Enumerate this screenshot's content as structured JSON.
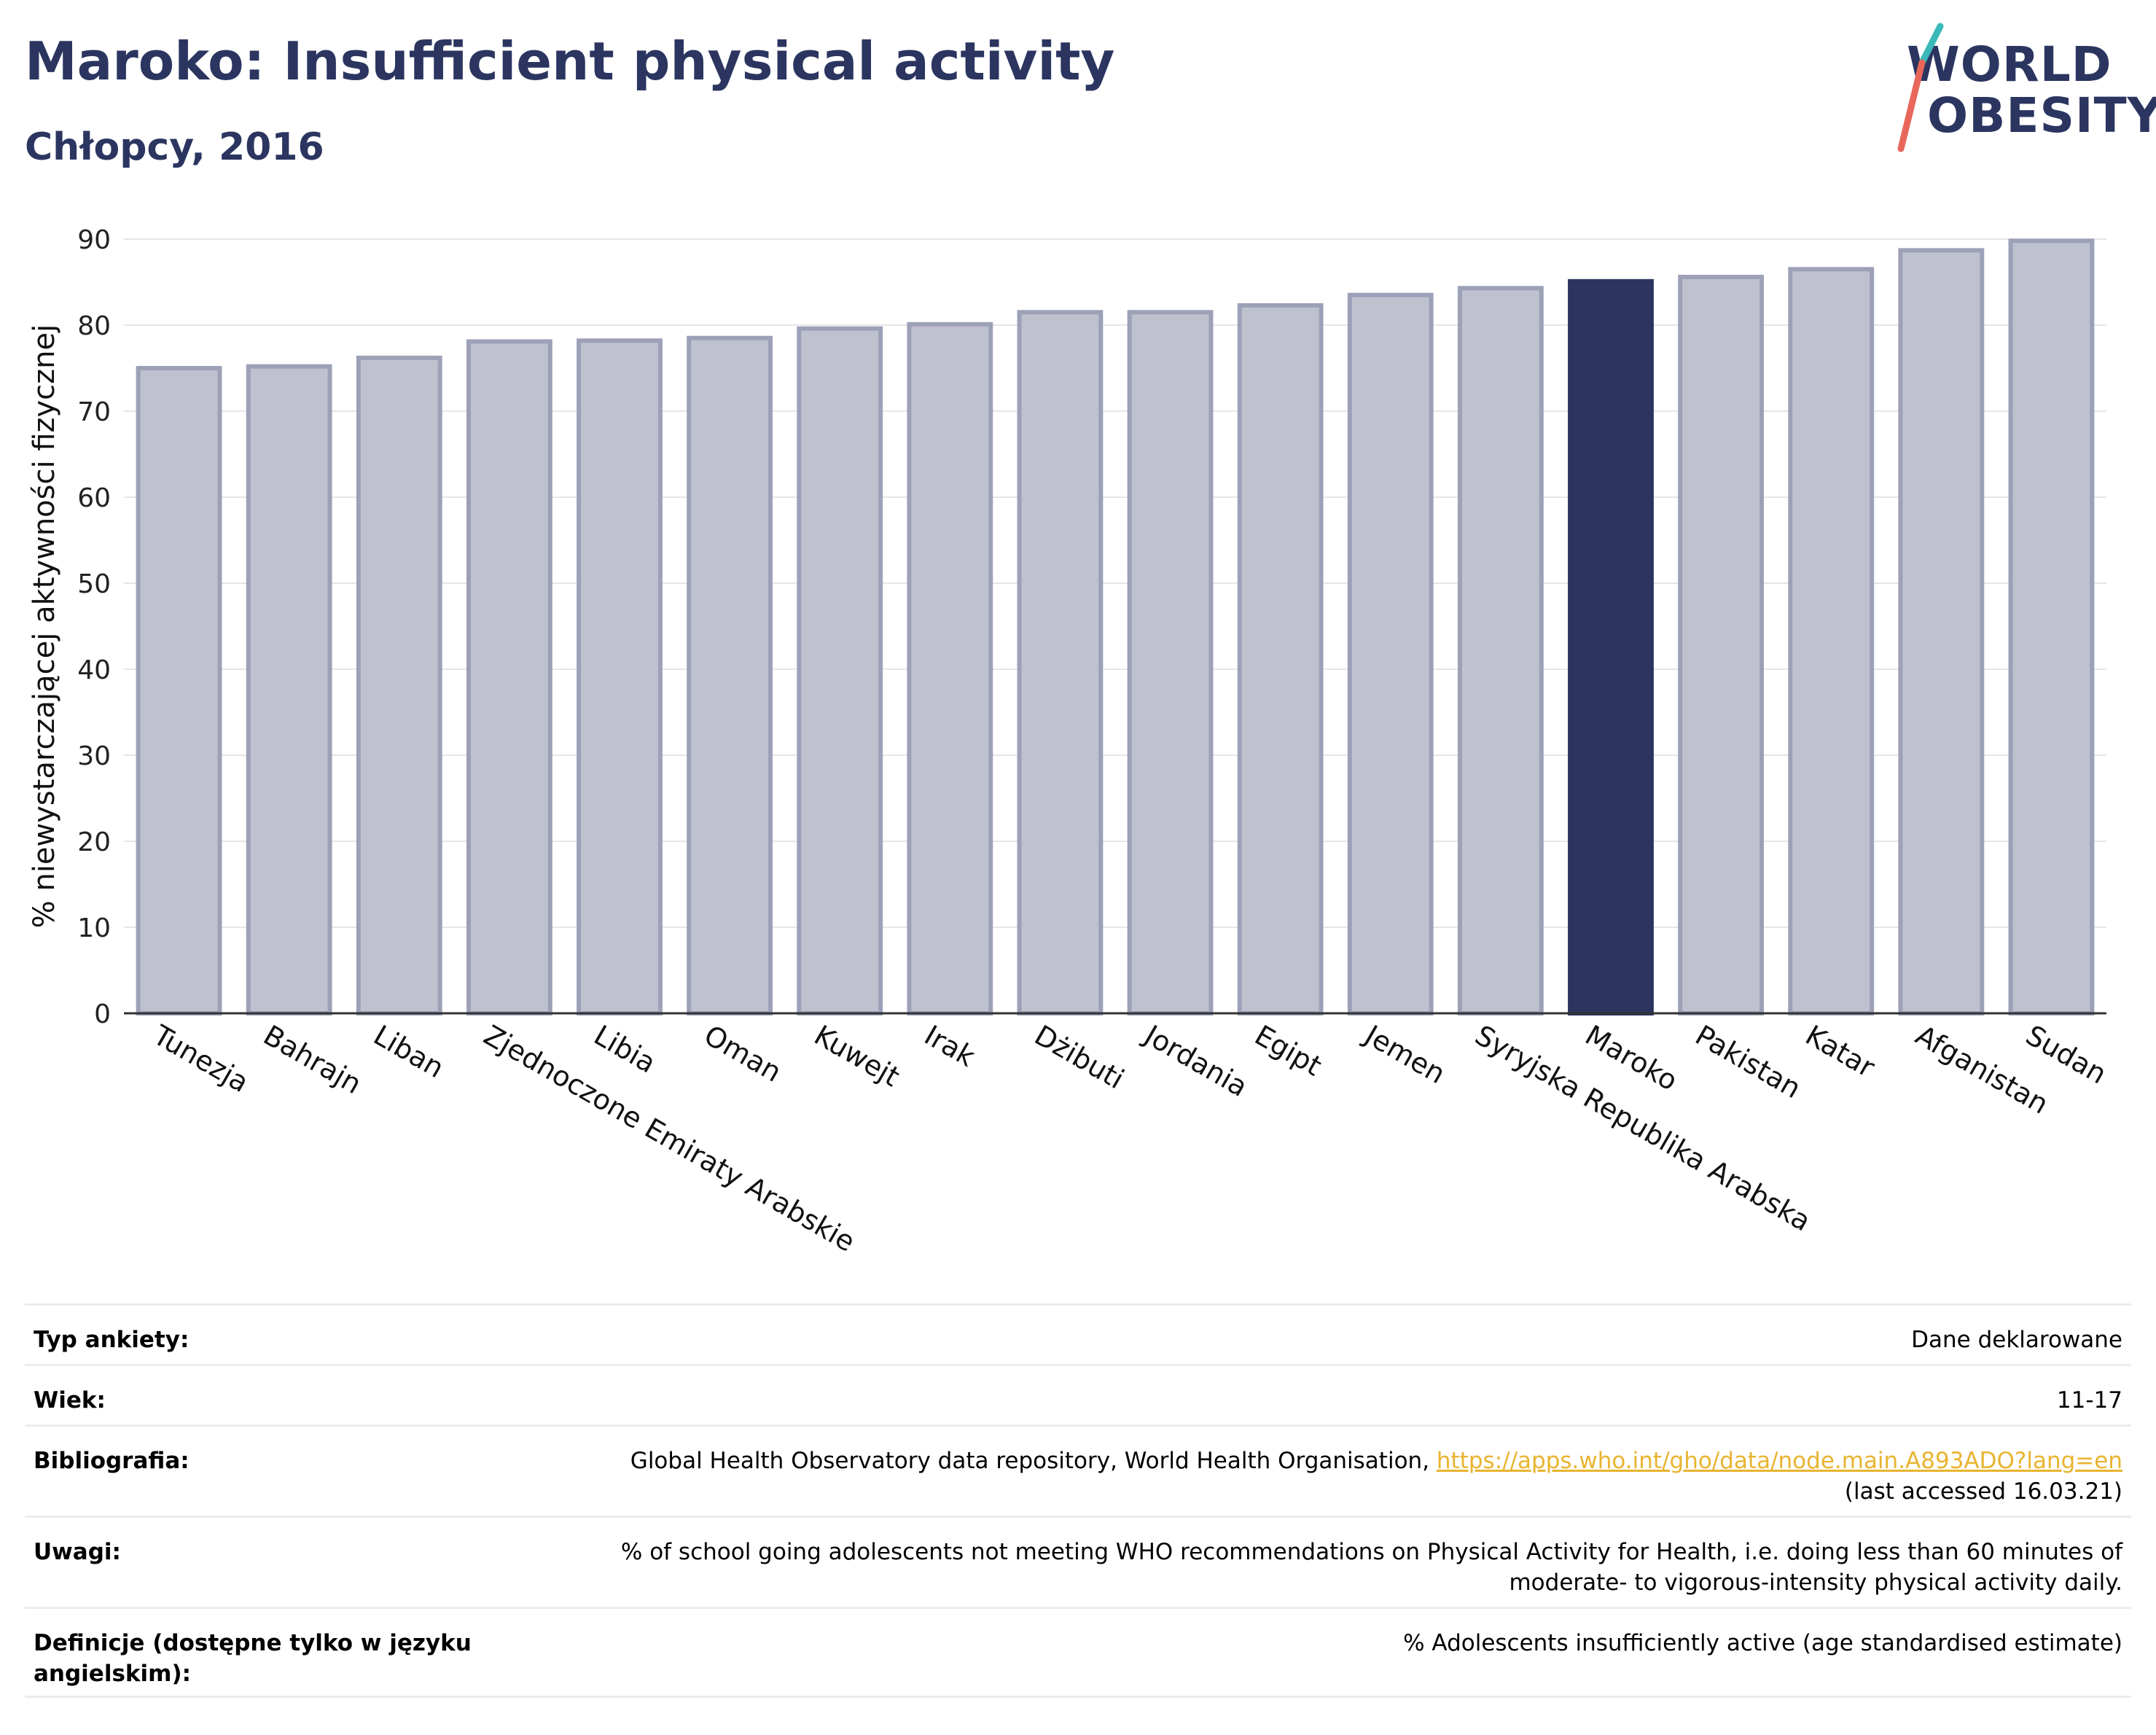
{
  "header": {
    "title": "Maroko: Insufficient physical activity",
    "subtitle": "Chłopcy, 2016"
  },
  "logo": {
    "line1": "WORLD",
    "line2": "OBESITY",
    "colors": {
      "text": "#2b3560",
      "slash_top": "#3bb8b8",
      "slash_bottom": "#e8675a"
    }
  },
  "colors": {
    "highlight": "#2b3560",
    "bar_fill": "#bfc1ce",
    "bar_edge": "#9ca1b8",
    "grid": "#e6e6e6"
  },
  "chart_data": {
    "type": "bar",
    "title": "Maroko: Insufficient physical activity",
    "subtitle": "Chłopcy, 2016",
    "xlabel": "",
    "ylabel": "% niewystarczającej aktywności fizycznej",
    "ylim": [
      0,
      90
    ],
    "yticks": [
      0,
      10,
      20,
      30,
      40,
      50,
      60,
      70,
      80,
      90
    ],
    "grid": true,
    "highlight": "Maroko",
    "categories": [
      "Tunezja",
      "Bahrajn",
      "Liban",
      "Zjednoczone Emiraty Arabskie",
      "Libia",
      "Oman",
      "Kuwejt",
      "Irak",
      "Dżibuti",
      "Jordania",
      "Egipt",
      "Jemen",
      "Syryjska Republika Arabska",
      "Maroko",
      "Pakistan",
      "Katar",
      "Afganistan",
      "Sudan"
    ],
    "values": [
      75.0,
      75.2,
      76.2,
      78.1,
      78.2,
      78.5,
      79.6,
      80.1,
      81.5,
      81.5,
      82.3,
      83.5,
      84.3,
      85.1,
      85.6,
      86.5,
      88.7,
      89.8
    ]
  },
  "info": {
    "rows": [
      {
        "label": "Typ ankiety:",
        "value": "Dane deklarowane"
      },
      {
        "label": "Wiek:",
        "value": "11-17"
      },
      {
        "label": "Bibliografia:",
        "value": "Global Health Observatory data repository, World Health Organisation, ",
        "link": "https://apps.who.int/gho/data/node.main.A893ADO?lang=en",
        "value2": "(last accessed 16.03.21)"
      },
      {
        "label": "Uwagi:",
        "value": "% of school going adolescents not meeting WHO recommendations on Physical Activity for Health, i.e. doing less than 60 minutes of",
        "value2": "moderate- to vigorous-intensity physical activity daily."
      },
      {
        "label": "Definicje (dostępne tylko w języku",
        "label2": "angielskim):",
        "value": "% Adolescents insufficiently active (age standardised estimate)"
      }
    ]
  }
}
